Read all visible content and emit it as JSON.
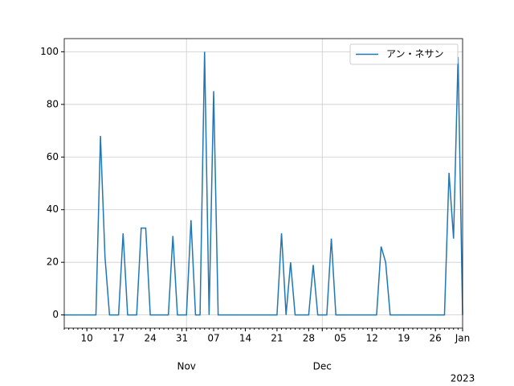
{
  "chart_data": {
    "type": "line",
    "x": [
      "2022-10-05",
      "2022-10-06",
      "2022-10-07",
      "2022-10-08",
      "2022-10-09",
      "2022-10-10",
      "2022-10-11",
      "2022-10-12",
      "2022-10-13",
      "2022-10-14",
      "2022-10-15",
      "2022-10-16",
      "2022-10-17",
      "2022-10-18",
      "2022-10-19",
      "2022-10-20",
      "2022-10-21",
      "2022-10-22",
      "2022-10-23",
      "2022-10-24",
      "2022-10-25",
      "2022-10-26",
      "2022-10-27",
      "2022-10-28",
      "2022-10-29",
      "2022-10-30",
      "2022-10-31",
      "2022-11-01",
      "2022-11-02",
      "2022-11-03",
      "2022-11-04",
      "2022-11-05",
      "2022-11-06",
      "2022-11-07",
      "2022-11-08",
      "2022-11-09",
      "2022-11-10",
      "2022-11-11",
      "2022-11-12",
      "2022-11-13",
      "2022-11-14",
      "2022-11-15",
      "2022-11-16",
      "2022-11-17",
      "2022-11-18",
      "2022-11-19",
      "2022-11-20",
      "2022-11-21",
      "2022-11-22",
      "2022-11-23",
      "2022-11-24",
      "2022-11-25",
      "2022-11-26",
      "2022-11-27",
      "2022-11-28",
      "2022-11-29",
      "2022-11-30",
      "2022-12-01",
      "2022-12-02",
      "2022-12-03",
      "2022-12-04",
      "2022-12-05",
      "2022-12-06",
      "2022-12-07",
      "2022-12-08",
      "2022-12-09",
      "2022-12-10",
      "2022-12-11",
      "2022-12-12",
      "2022-12-13",
      "2022-12-14",
      "2022-12-15",
      "2022-12-16",
      "2022-12-17",
      "2022-12-18",
      "2022-12-19",
      "2022-12-20",
      "2022-12-21",
      "2022-12-22",
      "2022-12-23",
      "2022-12-24",
      "2022-12-25",
      "2022-12-26",
      "2022-12-27",
      "2022-12-28",
      "2022-12-29",
      "2022-12-30",
      "2022-12-31",
      "2023-01-01"
    ],
    "series": [
      {
        "name": "アン・ネサン",
        "color": "#1f77b4",
        "values": [
          0,
          0,
          0,
          0,
          0,
          0,
          0,
          0,
          68,
          22,
          0,
          0,
          0,
          31,
          0,
          0,
          0,
          33,
          33,
          0,
          0,
          0,
          0,
          0,
          30,
          0,
          0,
          0,
          36,
          0,
          0,
          100,
          0,
          85,
          0,
          0,
          0,
          0,
          0,
          0,
          0,
          0,
          0,
          0,
          0,
          0,
          0,
          0,
          31,
          0,
          20,
          0,
          0,
          0,
          0,
          19,
          0,
          0,
          0,
          29,
          0,
          0,
          0,
          0,
          0,
          0,
          0,
          0,
          0,
          0,
          26,
          20,
          0,
          0,
          0,
          0,
          0,
          0,
          0,
          0,
          0,
          0,
          0,
          0,
          0,
          54,
          29,
          98,
          0
        ]
      }
    ],
    "xlim": [
      "2022-10-05",
      "2023-01-01"
    ],
    "xticks": [
      {
        "value": "2022-10-10",
        "label": "10"
      },
      {
        "value": "2022-10-17",
        "label": "17"
      },
      {
        "value": "2022-10-24",
        "label": "24"
      },
      {
        "value": "2022-10-31",
        "label": "31"
      },
      {
        "value": "2022-11-07",
        "label": "07"
      },
      {
        "value": "2022-11-14",
        "label": "14"
      },
      {
        "value": "2022-11-21",
        "label": "21"
      },
      {
        "value": "2022-11-28",
        "label": "28"
      },
      {
        "value": "2022-12-05",
        "label": "05"
      },
      {
        "value": "2022-12-12",
        "label": "12"
      },
      {
        "value": "2022-12-19",
        "label": "19"
      },
      {
        "value": "2022-12-26",
        "label": "26"
      },
      {
        "value": "2023-01-01",
        "label": "Jan"
      }
    ],
    "month_ticks": [
      {
        "value": "2022-11-01",
        "label": "Nov"
      },
      {
        "value": "2022-12-01",
        "label": "Dec"
      },
      {
        "value": "2023-01-01",
        "label": "2023"
      }
    ],
    "ylim": [
      -5,
      105
    ],
    "yticks": [
      0,
      20,
      40,
      60,
      80,
      100
    ],
    "grid": true,
    "legend": "upper right"
  }
}
